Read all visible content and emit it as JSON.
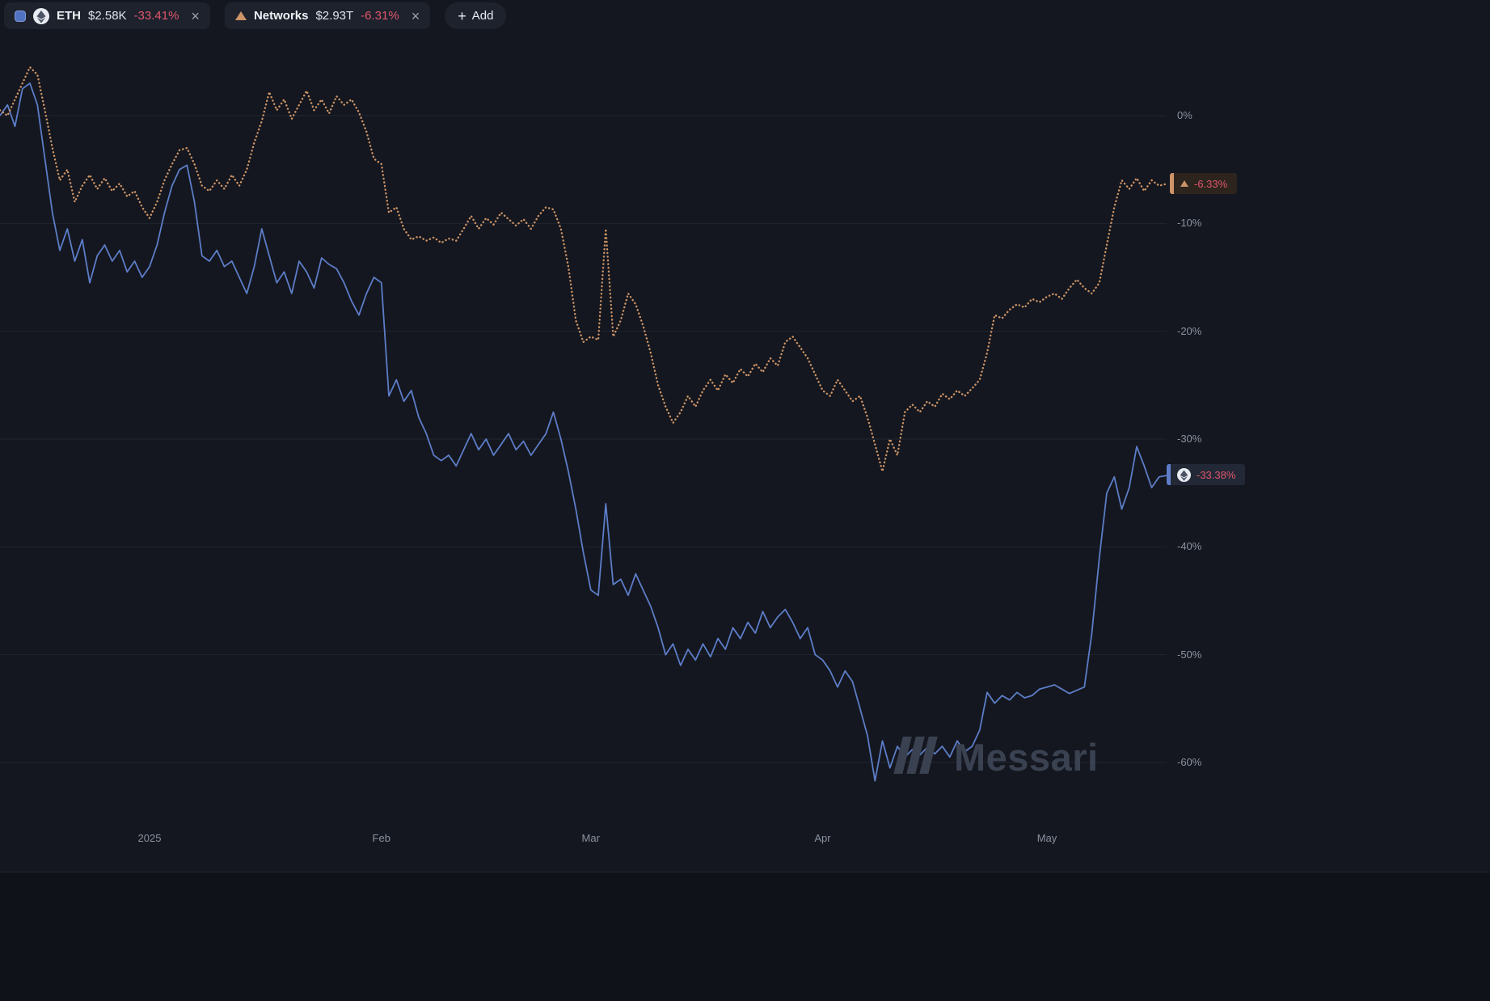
{
  "header": {
    "chips": [
      {
        "symbol": "ETH",
        "price": "$2.58K",
        "change": "-33.41%",
        "close": "×",
        "color": "#5272c2",
        "icon": "eth-logo"
      },
      {
        "symbol": "Networks",
        "price": "$2.93T",
        "change": "-6.31%",
        "close": "×",
        "color": "#cd9467",
        "icon": "triangle-up"
      }
    ],
    "add_button": {
      "plus": "+",
      "label": "Add"
    }
  },
  "chart_data": {
    "type": "line",
    "y_unit": "percent-change",
    "ylim": [
      -65,
      5
    ],
    "grid": true,
    "legend_position": "top-left-chips",
    "y_ticks": [
      0,
      -10,
      -20,
      -30,
      -40,
      -50,
      -60
    ],
    "y_tick_labels": [
      "0%",
      "-10%",
      "-20%",
      "-30%",
      "-40%",
      "-50%",
      "-60%"
    ],
    "x_range_days": [
      0,
      156
    ],
    "x_ticks": [
      {
        "label": "2025",
        "day": 20
      },
      {
        "label": "Feb",
        "day": 51
      },
      {
        "label": "Mar",
        "day": 79
      },
      {
        "label": "Apr",
        "day": 110
      },
      {
        "label": "May",
        "day": 140
      }
    ],
    "series": [
      {
        "name": "ETH",
        "color": "#5d7dc8",
        "style": "solid",
        "last_label": "-33.38%",
        "values": [
          0,
          1,
          -1,
          2.5,
          3,
          1,
          -4,
          -9,
          -12.5,
          -10.5,
          -13.5,
          -11.5,
          -15.5,
          -13,
          -12,
          -13.5,
          -12.5,
          -14.5,
          -13.5,
          -15,
          -14,
          -12,
          -9,
          -6.5,
          -5,
          -4.6,
          -8,
          -13,
          -13.5,
          -12.5,
          -14,
          -13.5,
          -15,
          -16.5,
          -14,
          -10.5,
          -13,
          -15.5,
          -14.5,
          -16.5,
          -13.5,
          -14.5,
          -16,
          -13.2,
          -13.8,
          -14.2,
          -15.5,
          -17.2,
          -18.5,
          -16.5,
          -15,
          -15.5,
          -26,
          -24.5,
          -26.5,
          -25.5,
          -28,
          -29.5,
          -31.5,
          -32,
          -31.5,
          -32.5,
          -31,
          -29.5,
          -31,
          -30,
          -31.5,
          -30.5,
          -29.5,
          -31,
          -30.2,
          -31.5,
          -30.5,
          -29.5,
          -27.5,
          -30,
          -33,
          -36.5,
          -40.5,
          -44,
          -44.5,
          -36,
          -43.5,
          -43,
          -44.5,
          -42.5,
          -44,
          -45.5,
          -47.5,
          -50,
          -49,
          -51,
          -49.5,
          -50.5,
          -49,
          -50.2,
          -48.5,
          -49.5,
          -47.5,
          -48.5,
          -47,
          -48,
          -46,
          -47.5,
          -46.5,
          -45.8,
          -47,
          -48.5,
          -47.5,
          -50,
          -50.5,
          -51.5,
          -53,
          -51.5,
          -52.5,
          -55,
          -57.5,
          -61.7,
          -58,
          -60.5,
          -58.5,
          -59.5,
          -58.8,
          -59.3,
          -58.6,
          -59.2,
          -58.5,
          -59.5,
          -58,
          -59,
          -58.5,
          -57,
          -53.5,
          -54.5,
          -53.8,
          -54.2,
          -53.5,
          -54,
          -53.8,
          -53.2,
          -53,
          -52.8,
          -53.2,
          -53.6,
          -53.3,
          -53,
          -48,
          -41,
          -35,
          -33.5,
          -36.5,
          -34.5,
          -30.7,
          -32.5,
          -34.5,
          -33.5,
          -33.38
        ]
      },
      {
        "name": "Networks",
        "color": "#cd9467",
        "style": "dotted",
        "last_label": "-6.33%",
        "values": [
          0.5,
          0,
          1.5,
          3,
          4.5,
          3.8,
          0.5,
          -3,
          -6,
          -5,
          -8,
          -6.5,
          -5.5,
          -6.8,
          -5.8,
          -7,
          -6.3,
          -7.5,
          -7,
          -8.5,
          -9.5,
          -8,
          -6,
          -4.5,
          -3.2,
          -3,
          -4.5,
          -6.5,
          -7,
          -6,
          -6.8,
          -5.5,
          -6.5,
          -5,
          -2.5,
          -0.5,
          2.2,
          0.5,
          1.5,
          -0.3,
          1,
          2.3,
          0.5,
          1.5,
          0.2,
          1.8,
          1,
          1.5,
          0.3,
          -1.5,
          -4,
          -4.5,
          -9,
          -8.5,
          -10.5,
          -11.5,
          -11.2,
          -11.6,
          -11.3,
          -11.8,
          -11.4,
          -11.6,
          -10.5,
          -9.3,
          -10.5,
          -9.5,
          -10.1,
          -9,
          -9.6,
          -10.2,
          -9.6,
          -10.5,
          -9.3,
          -8.5,
          -8.7,
          -10.5,
          -14,
          -19,
          -21,
          -20.5,
          -20.8,
          -10.5,
          -20.5,
          -19,
          -16.5,
          -17.5,
          -19.5,
          -22,
          -25,
          -27,
          -28.5,
          -27.5,
          -26,
          -27,
          -25.5,
          -24.5,
          -25.5,
          -24,
          -24.8,
          -23.5,
          -24.2,
          -23,
          -23.8,
          -22.5,
          -23.2,
          -21,
          -20.5,
          -21.5,
          -22.5,
          -24,
          -25.5,
          -26,
          -24.5,
          -25.5,
          -26.5,
          -26,
          -28,
          -30.5,
          -33,
          -30,
          -31.5,
          -27.5,
          -26.8,
          -27.5,
          -26.5,
          -27,
          -25.8,
          -26.3,
          -25.5,
          -26,
          -25.3,
          -24.5,
          -22,
          -18.5,
          -18.8,
          -18,
          -17.5,
          -17.8,
          -17,
          -17.3,
          -16.8,
          -16.5,
          -17,
          -16,
          -15.2,
          -16,
          -16.5,
          -15.5,
          -12,
          -8.5,
          -6,
          -6.8,
          -5.8,
          -7,
          -6,
          -6.5,
          -6.33
        ]
      }
    ]
  },
  "watermark": {
    "text": "Messari"
  },
  "colors": {
    "negative": "#e0566b",
    "axis_text": "#8a91a0",
    "background": "#14171f"
  }
}
